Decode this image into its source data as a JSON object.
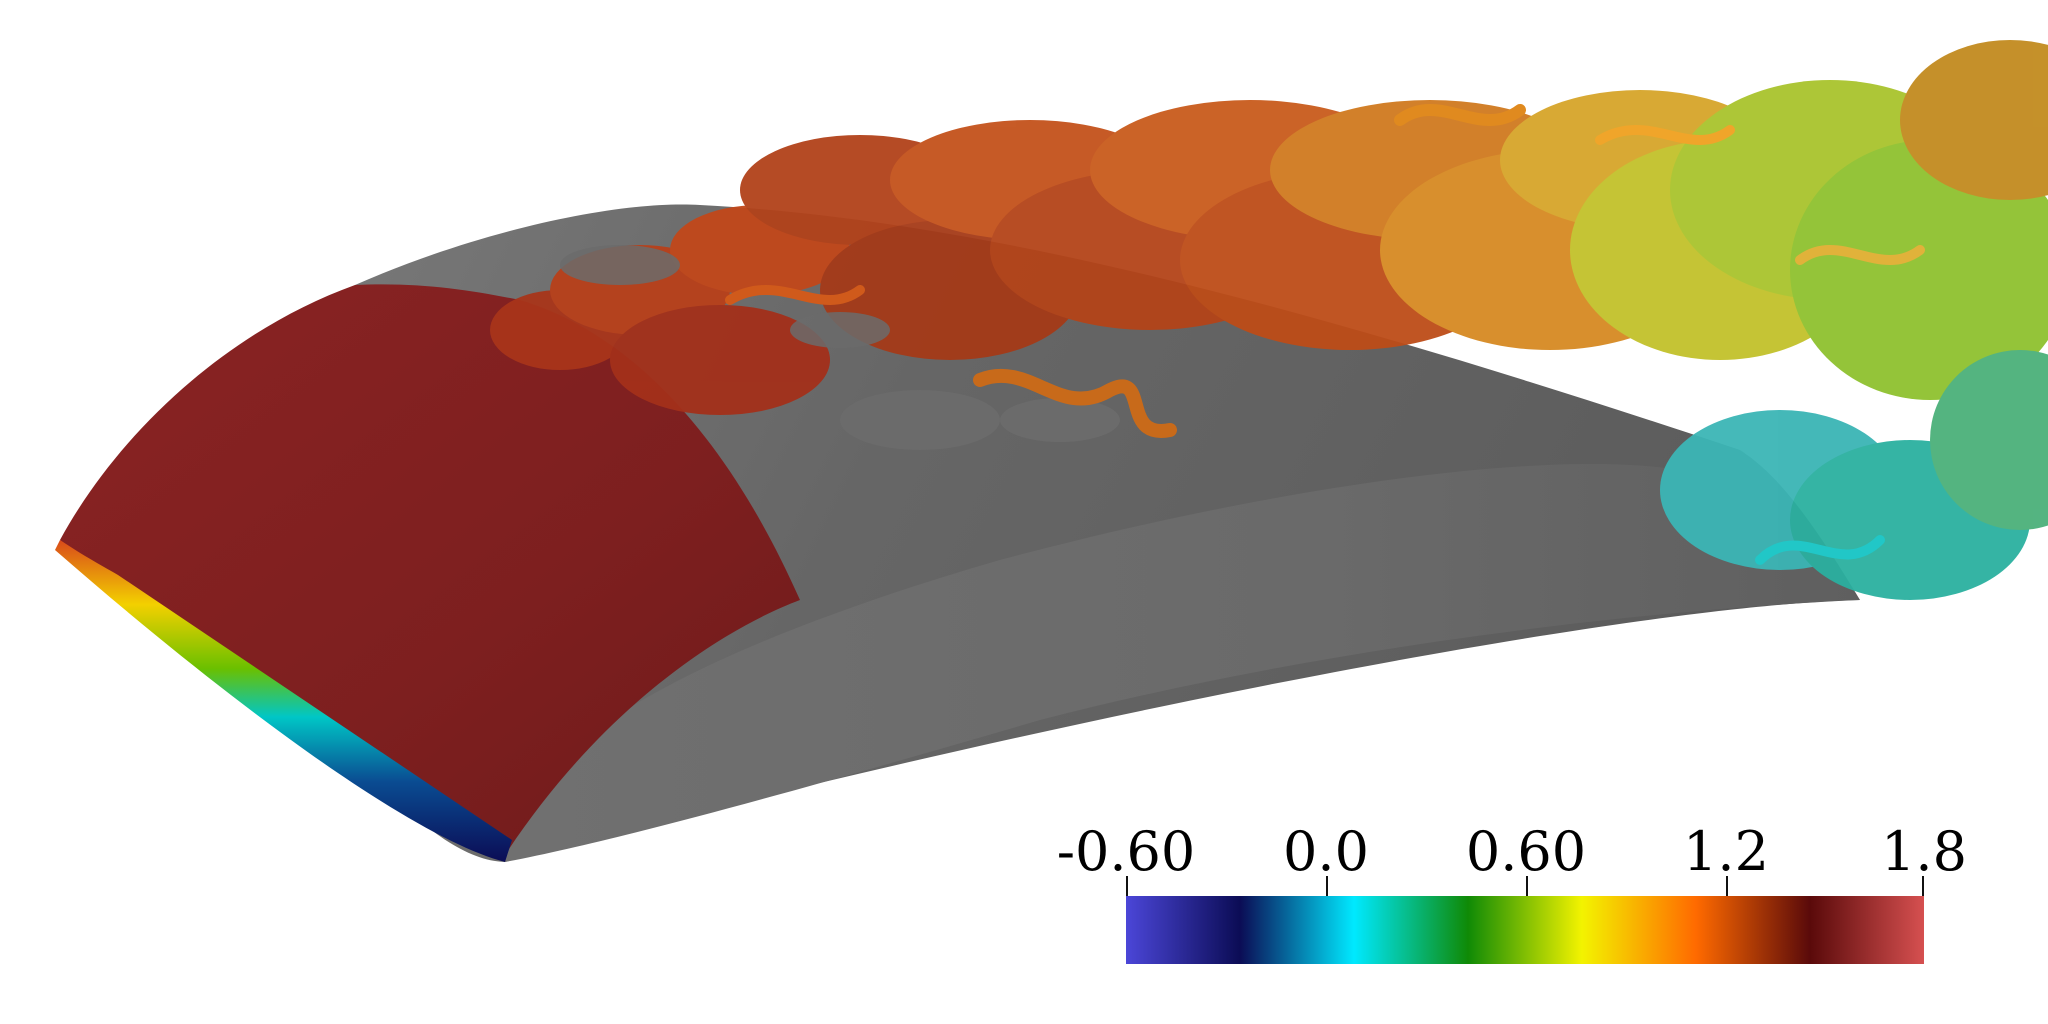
{
  "colorbar": {
    "ticks": [
      "-0.60",
      "0.0",
      "0.60",
      "1.2",
      "1.8"
    ],
    "colors": [
      "#4b46d8",
      "#0b0c55",
      "#00e9ff",
      "#0f8a06",
      "#f3f300",
      "#ff6a00",
      "#5a0a0a",
      "#d65050"
    ]
  },
  "visual": {
    "wing_surface_color": "#6b6b6b",
    "leading_edge_color": "#7d1f1f"
  }
}
